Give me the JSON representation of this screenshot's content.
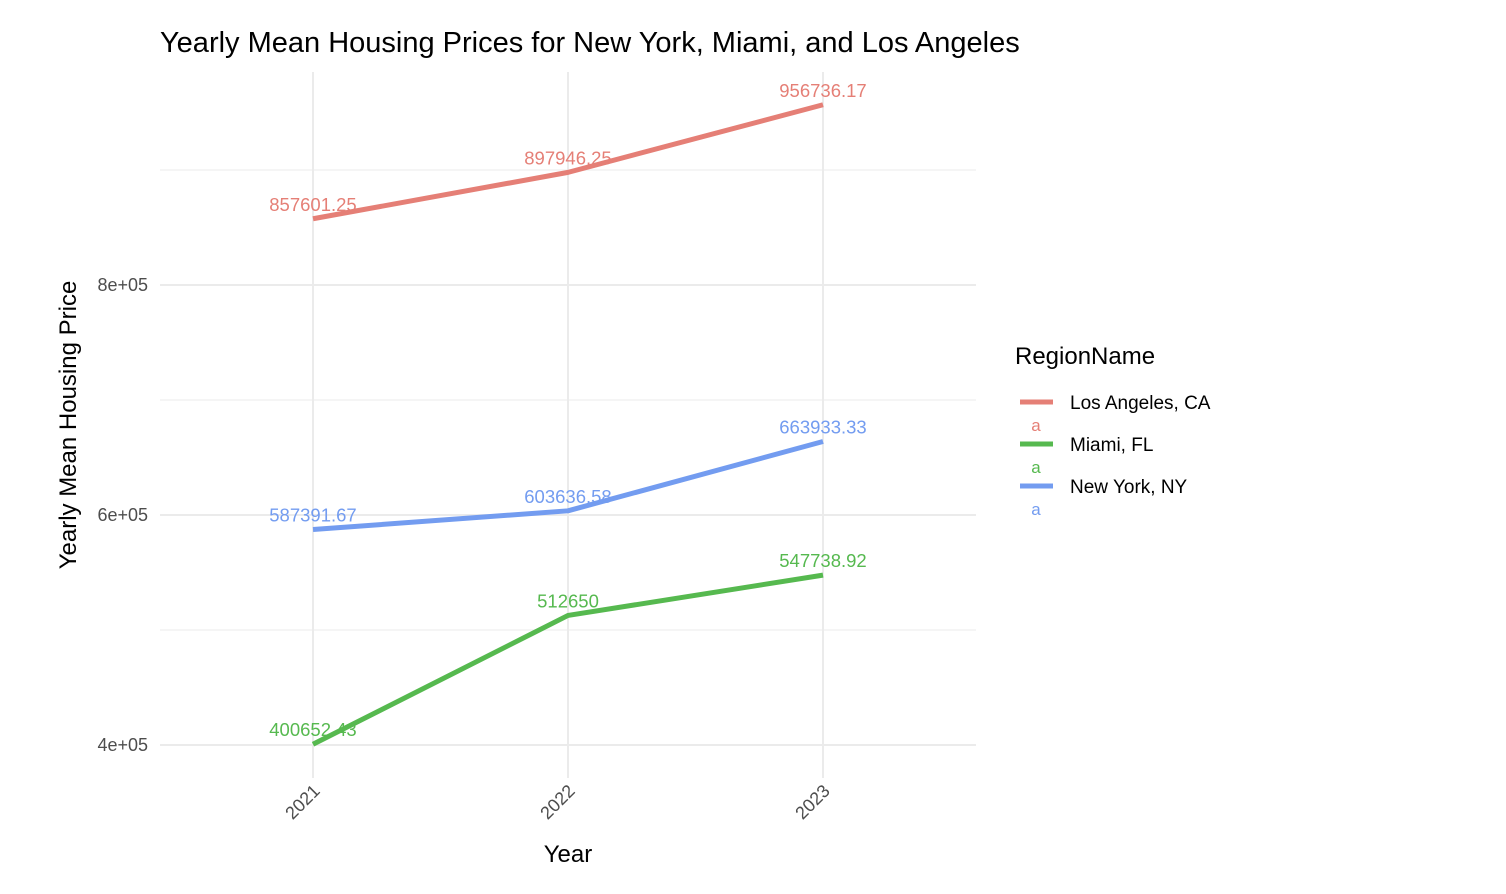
{
  "chart_data": {
    "type": "line",
    "title": "Yearly Mean Housing Prices for New York, Miami, and Los Angeles",
    "xlabel": "Year",
    "ylabel": "Yearly Mean Housing Price",
    "x": [
      2021,
      2022,
      2023
    ],
    "x_tick_labels": [
      "2021",
      "2022",
      "2023"
    ],
    "y_ticks": [
      400000,
      600000,
      800000
    ],
    "y_tick_labels": [
      "4e+05",
      "6e+05",
      "8e+05"
    ],
    "y_minor_ticks": [
      500000,
      700000,
      900000
    ],
    "ylim": [
      370000,
      985000
    ],
    "grid": true,
    "legend": {
      "title": "RegionName",
      "placement": "right",
      "key_glyph": "a"
    },
    "series": [
      {
        "name": "Los Angeles, CA",
        "color": "#e57f76",
        "values": [
          857601.25,
          897946.25,
          956736.17
        ],
        "labels": [
          "857601.25",
          "897946.25",
          "956736.17"
        ]
      },
      {
        "name": "Miami, FL",
        "color": "#56b94f",
        "values": [
          400652.43,
          512650,
          547738.92
        ],
        "labels": [
          "400652.43",
          "512650",
          "547738.92"
        ]
      },
      {
        "name": "New York, NY",
        "color": "#739cf0",
        "values": [
          587391.67,
          603636.58,
          663933.33
        ],
        "labels": [
          "587391.67",
          "603636.58",
          "663933.33"
        ]
      }
    ]
  }
}
